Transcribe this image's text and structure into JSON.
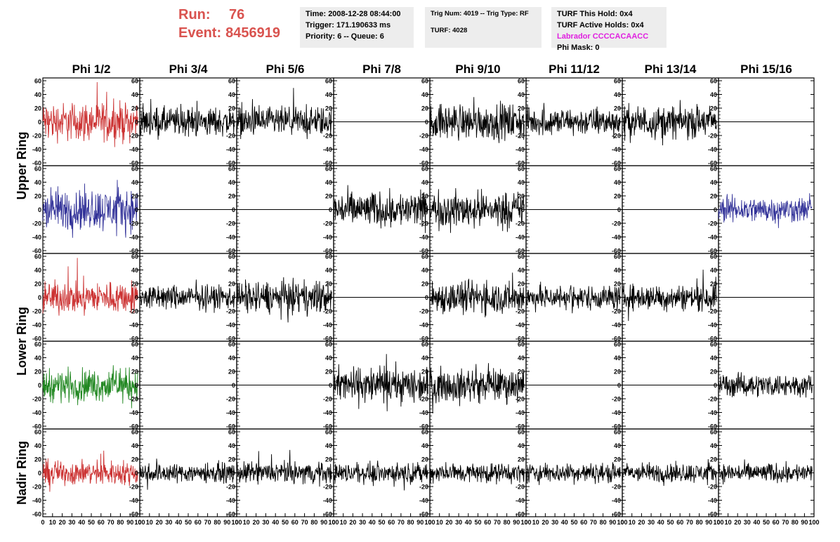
{
  "header": {
    "run_label": "Run:",
    "run_value": "76",
    "event_label": "Event:",
    "event_value": "8456919",
    "time": "Time: 2008-12-28 08:44:00",
    "trigger": "Trigger: 171.190633 ms",
    "priority": "Priority: 6 -- Queue: 6",
    "trig_num": "Trig Num: 4019 -- Trig Type: RF",
    "turf": "TURF: 4028",
    "turf_hold": "TURF This Hold: 0x4",
    "turf_active": "TURF Active Holds: 0x4",
    "labrador": "Labrador CCCCACAACC",
    "phi_mask": "Phi Mask: 0"
  },
  "colors": {
    "red": "#cc3333",
    "blue": "#333399",
    "green": "#228822",
    "black": "#000000",
    "run_text": "#d9534f",
    "magenta": "#e020e0",
    "box_bg": "#ededed"
  },
  "chart_data": {
    "type": "line",
    "columns": [
      "Phi 1/2",
      "Phi 3/4",
      "Phi 5/6",
      "Phi 7/8",
      "Phi 9/10",
      "Phi 11/12",
      "Phi 13/14",
      "Phi 15/16"
    ],
    "ring_labels": [
      {
        "text": "Upper Ring",
        "rows": [
          0,
          1
        ]
      },
      {
        "text": "Lower Ring",
        "rows": [
          2,
          3
        ]
      },
      {
        "text": "Nadir Ring",
        "rows": [
          4
        ]
      }
    ],
    "ylim": [
      -60,
      60
    ],
    "y_ticks": [
      -60,
      -40,
      -20,
      0,
      20,
      40,
      60
    ],
    "xlim": [
      0,
      100
    ],
    "x_ticks": [
      0,
      10,
      20,
      30,
      40,
      50,
      60,
      70,
      80,
      90,
      100
    ],
    "x_tick_labels": [
      "0",
      "10",
      "20",
      "30",
      "40",
      "50",
      "60",
      "70",
      "80",
      "90",
      "100"
    ],
    "panels": [
      [
        "red:24",
        "black:18",
        "black:18",
        "flat",
        "black:22",
        "black:17",
        "black:20",
        "flat"
      ],
      [
        "blue:26",
        "flat",
        "flat",
        "black:22",
        "black:22",
        "flat",
        "flat",
        "blue:16"
      ],
      [
        "red:20",
        "black:15",
        "black:20",
        "flat",
        "black:20",
        "black:15",
        "black:16",
        "flat"
      ],
      [
        "green:20",
        "flat",
        "flat",
        "black:22",
        "black:20",
        "flat",
        "flat",
        "black:14"
      ],
      [
        "red:15",
        "black:12",
        "black:13",
        "black:12",
        "black:12",
        "black:12",
        "black:12",
        "black:12"
      ]
    ]
  }
}
